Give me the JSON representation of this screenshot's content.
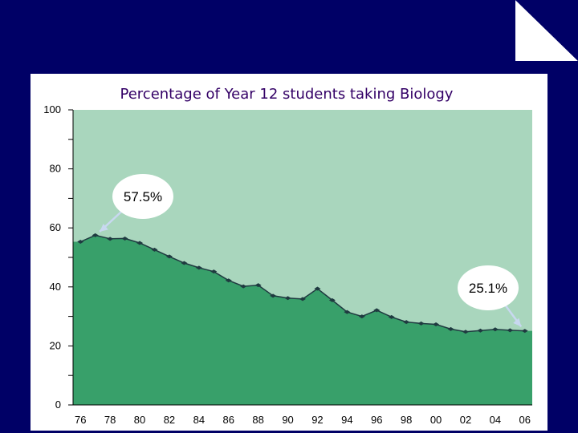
{
  "colors": {
    "slide_background": "#000066",
    "plot_background": "#a9d6bd",
    "area_fill": "#38a06a",
    "line": "#1f3a40",
    "title": "#330066",
    "callout_arrow": "#c8d8f0"
  },
  "chart_data": {
    "type": "area",
    "title": "Percentage of Year 12 students taking Biology",
    "xlabel": "",
    "ylabel": "",
    "ylim": [
      0,
      100
    ],
    "xlim": [
      1975.5,
      2006.5
    ],
    "yticks": [
      0,
      20,
      40,
      60,
      80,
      100
    ],
    "ytick_labels": [
      "0",
      "20",
      "40",
      "60",
      "80",
      "100"
    ],
    "xticks": [
      1976,
      1978,
      1980,
      1982,
      1984,
      1986,
      1988,
      1990,
      1992,
      1994,
      1996,
      1998,
      2000,
      2002,
      2004,
      2006
    ],
    "xtick_labels": [
      "76",
      "78",
      "80",
      "82",
      "84",
      "86",
      "88",
      "90",
      "92",
      "94",
      "96",
      "98",
      "00",
      "02",
      "04",
      "06"
    ],
    "grid": false,
    "legend": "none",
    "series": [
      {
        "x": [
          1976,
          1977,
          1978,
          1979,
          1980,
          1981,
          1982,
          1983,
          1984,
          1985,
          1986,
          1987,
          1988,
          1989,
          1990,
          1991,
          1992,
          1993,
          1994,
          1995,
          1996,
          1997,
          1998,
          1999,
          2000,
          2001,
          2002,
          2003,
          2004,
          2005,
          2006
        ],
        "values": [
          55.3,
          57.5,
          56.3,
          56.4,
          54.9,
          52.6,
          50.3,
          48.1,
          46.5,
          45.2,
          42.2,
          40.2,
          40.6,
          37.0,
          36.2,
          35.9,
          39.4,
          35.5,
          31.5,
          30.0,
          32.1,
          29.8,
          28.1,
          27.6,
          27.3,
          25.7,
          24.8,
          25.2,
          25.6,
          25.3,
          25.1
        ]
      }
    ],
    "annotations": [
      {
        "text": "57.5%",
        "x": 1977,
        "y": 57.5
      },
      {
        "text": "25.1%",
        "x": 2006,
        "y": 25.1
      }
    ]
  }
}
